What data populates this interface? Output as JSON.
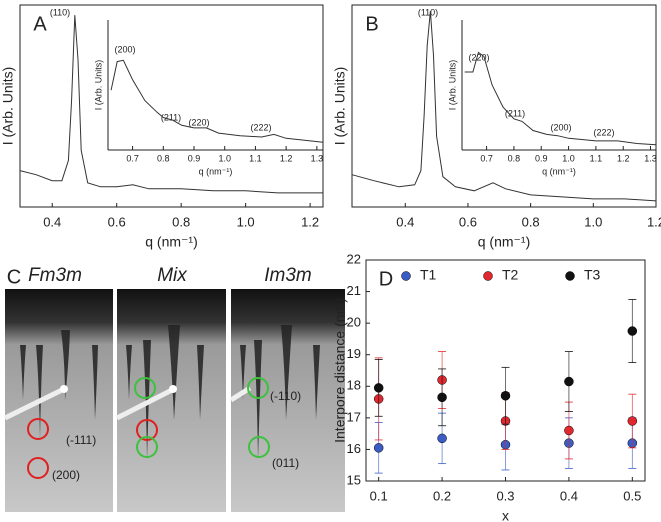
{
  "chart_data": [
    {
      "type": "line",
      "panel_label": "A",
      "frame": "box",
      "xlabel": "q (nm⁻¹)",
      "ylabel": "I (Arb. Units)",
      "xlim": [
        0.3,
        1.24
      ],
      "ylim": [
        0,
        100
      ],
      "xticks": [
        0.4,
        0.6,
        0.8,
        {
          "value": 1.0,
          "label": "1.0"
        },
        1.2
      ],
      "annotations": [
        "(110)"
      ],
      "series": [
        {
          "color": "#333333",
          "x": [
            0.3,
            0.35,
            0.4,
            0.43,
            0.45,
            0.46,
            0.47,
            0.48,
            0.49,
            0.51,
            0.55,
            0.6,
            0.65,
            0.7,
            0.8,
            0.9,
            1.0,
            1.1,
            1.24
          ],
          "values": [
            18,
            16,
            13,
            13,
            23,
            53,
            95,
            73,
            28,
            12,
            10,
            10,
            11,
            9,
            9,
            8,
            8,
            7,
            7
          ]
        }
      ]
    },
    {
      "type": "line",
      "frame": "open",
      "xlabel": "q (nm⁻¹)",
      "ylabel": "I (Arb. Units)",
      "xlim": [
        0.62,
        1.32
      ],
      "ylim": [
        0,
        100
      ],
      "xticks": [
        0.7,
        0.8,
        0.9,
        {
          "value": 1.0,
          "label": "1.0"
        },
        1.1,
        1.2,
        1.3
      ],
      "annotations": [
        "(200)",
        "(211)",
        "(220)",
        "(222)"
      ],
      "series": [
        {
          "color": "#333333",
          "x": [
            0.63,
            0.65,
            0.67,
            0.7,
            0.74,
            0.78,
            0.8,
            0.83,
            0.86,
            0.9,
            0.94,
            0.98,
            1.05,
            1.12,
            1.16,
            1.2,
            1.32
          ],
          "values": [
            46,
            68,
            69,
            54,
            38,
            29,
            25,
            23,
            19,
            17,
            17,
            13,
            11,
            10,
            12,
            9,
            6
          ]
        }
      ]
    },
    {
      "type": "line",
      "panel_label": "B",
      "frame": "box",
      "xlabel": "q (nm⁻¹)",
      "ylabel": "I (Arb. Units)",
      "xlim": [
        0.23,
        1.2
      ],
      "ylim": [
        0,
        100
      ],
      "xticks": [
        0.4,
        0.6,
        0.8,
        {
          "value": 1.0,
          "label": "1.0"
        },
        1.2
      ],
      "annotations": [
        "(110)"
      ],
      "series": [
        {
          "color": "#333333",
          "x": [
            0.23,
            0.3,
            0.38,
            0.43,
            0.45,
            0.46,
            0.47,
            0.48,
            0.49,
            0.5,
            0.52,
            0.56,
            0.62,
            0.68,
            0.72,
            0.8,
            0.9,
            1.0,
            1.1,
            1.2
          ],
          "values": [
            16,
            13,
            10,
            11,
            18,
            45,
            80,
            97,
            75,
            35,
            15,
            10,
            8,
            12,
            9,
            6,
            5,
            4,
            4,
            3
          ]
        }
      ]
    },
    {
      "type": "line",
      "frame": "open",
      "xlabel": "q (nm⁻¹)",
      "ylabel": "I (Arb. Units)",
      "xlim": [
        0.61,
        1.32
      ],
      "ylim": [
        0,
        100
      ],
      "xticks": [
        0.7,
        0.8,
        0.9,
        {
          "value": 1.0,
          "label": "1.0"
        },
        1.1,
        1.2,
        1.3
      ],
      "annotations": [
        "(220)",
        "(211)",
        "(200)",
        "(222)"
      ],
      "series": [
        {
          "color": "#333333",
          "x": [
            0.62,
            0.65,
            0.67,
            0.69,
            0.72,
            0.76,
            0.8,
            0.83,
            0.87,
            0.92,
            0.96,
            1.0,
            1.1,
            1.18,
            1.25,
            1.32
          ],
          "values": [
            60,
            60,
            75,
            72,
            50,
            33,
            24,
            22,
            15,
            12,
            11,
            9,
            7,
            7,
            5,
            4
          ]
        }
      ]
    },
    {
      "type": "scatter",
      "panel_label": "D",
      "frame": "box",
      "xlabel": "x",
      "ylabel": "Interpore distance (nm)",
      "xlim": [
        0.08,
        0.52
      ],
      "ylim": [
        15,
        22
      ],
      "xticks": [
        0.1,
        0.2,
        0.3,
        0.4,
        0.5
      ],
      "yticks": [
        15,
        16,
        17,
        18,
        19,
        20,
        21,
        22
      ],
      "legend": "top",
      "series": [
        {
          "name": "T1",
          "color": "#3b5cc4",
          "x": [
            0.1,
            0.2,
            0.3,
            0.4,
            0.5
          ],
          "values": [
            16.05,
            16.35,
            16.15,
            16.2,
            16.2
          ],
          "errors": [
            0.8,
            0.8,
            0.8,
            0.8,
            0.8
          ]
        },
        {
          "name": "T2",
          "color": "#e0282e",
          "x": [
            0.1,
            0.2,
            0.3,
            0.4,
            0.5
          ],
          "values": [
            17.6,
            18.2,
            16.9,
            16.6,
            16.9
          ],
          "errors": [
            1.3,
            0.9,
            0.9,
            0.9,
            0.85
          ]
        },
        {
          "name": "T3",
          "color": "#111111",
          "x": [
            0.1,
            0.2,
            0.3,
            0.4,
            0.5
          ],
          "values": [
            17.95,
            17.65,
            17.7,
            18.15,
            19.75
          ],
          "errors": [
            0.9,
            0.9,
            0.9,
            0.95,
            1.0
          ]
        }
      ]
    }
  ],
  "image_panel": {
    "label": "C",
    "columns": [
      {
        "title": "Fm3m",
        "color": "#e02020"
      },
      {
        "title": "Mix",
        "color": "#111111"
      },
      {
        "title": "Im3m",
        "color": "#3cc23c"
      }
    ],
    "annotations": [
      "(-111)",
      "(200)",
      "(-110)",
      "(011)"
    ]
  }
}
